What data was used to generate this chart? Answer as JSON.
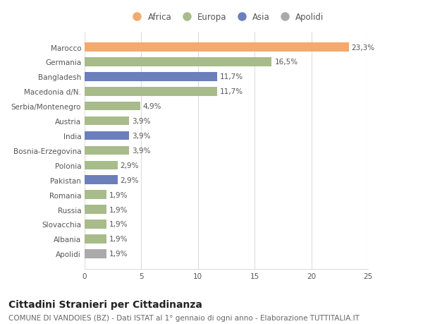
{
  "categories": [
    "Marocco",
    "Germania",
    "Bangladesh",
    "Macedonia d/N.",
    "Serbia/Montenegro",
    "Austria",
    "India",
    "Bosnia-Erzegovina",
    "Polonia",
    "Pakistan",
    "Romania",
    "Russia",
    "Slovacchia",
    "Albania",
    "Apolidi"
  ],
  "values": [
    23.3,
    16.5,
    11.7,
    11.7,
    4.9,
    3.9,
    3.9,
    3.9,
    2.9,
    2.9,
    1.9,
    1.9,
    1.9,
    1.9,
    1.9
  ],
  "labels": [
    "23,3%",
    "16,5%",
    "11,7%",
    "11,7%",
    "4,9%",
    "3,9%",
    "3,9%",
    "3,9%",
    "2,9%",
    "2,9%",
    "1,9%",
    "1,9%",
    "1,9%",
    "1,9%",
    "1,9%"
  ],
  "colors": [
    "#F4A96D",
    "#A8BB8A",
    "#6B7FBB",
    "#A8BB8A",
    "#A8BB8A",
    "#A8BB8A",
    "#6B7FBB",
    "#A8BB8A",
    "#A8BB8A",
    "#6B7FBB",
    "#A8BB8A",
    "#A8BB8A",
    "#A8BB8A",
    "#A8BB8A",
    "#AAAAAA"
  ],
  "legend_labels": [
    "Africa",
    "Europa",
    "Asia",
    "Apolidi"
  ],
  "legend_colors": [
    "#F4A96D",
    "#A8BB8A",
    "#6B7FBB",
    "#AAAAAA"
  ],
  "title": "Cittadini Stranieri per Cittadinanza",
  "subtitle": "COMUNE DI VANDOIES (BZ) - Dati ISTAT al 1° gennaio di ogni anno - Elaborazione TUTTITALIA.IT",
  "xlim": [
    0,
    25
  ],
  "xticks": [
    0,
    5,
    10,
    15,
    20,
    25
  ],
  "background_color": "#ffffff",
  "grid_color": "#dddddd",
  "bar_height": 0.6,
  "title_fontsize": 10,
  "subtitle_fontsize": 7.5,
  "label_fontsize": 7.5,
  "tick_fontsize": 7.5,
  "legend_fontsize": 8.5
}
